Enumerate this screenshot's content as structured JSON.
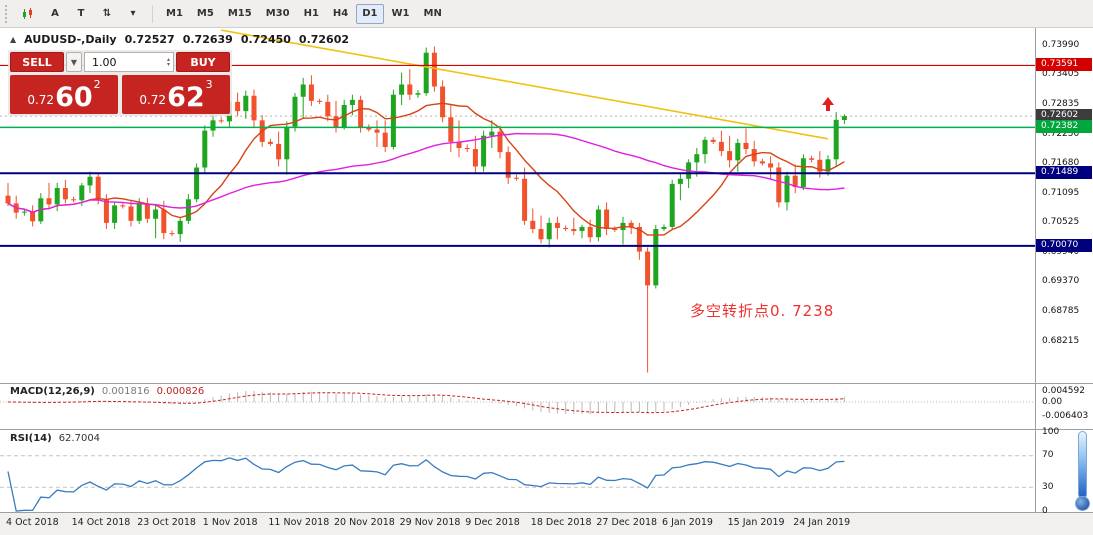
{
  "toolbar": {
    "tool_buttons": [
      {
        "label": "A"
      },
      {
        "label": "T"
      }
    ],
    "timeframes": [
      {
        "label": "M1"
      },
      {
        "label": "M5"
      },
      {
        "label": "M15"
      },
      {
        "label": "M30"
      },
      {
        "label": "H1"
      },
      {
        "label": "H4"
      },
      {
        "label": "D1",
        "active": true
      },
      {
        "label": "W1"
      },
      {
        "label": "MN"
      }
    ]
  },
  "chart_header": {
    "symbol": "AUDUSD-,Daily",
    "open": "0.72527",
    "high": "0.72639",
    "low": "0.72450",
    "close": "0.72602"
  },
  "trade_panel": {
    "sell_label": "SELL",
    "buy_label": "BUY",
    "volume": "1.00",
    "sell_price": {
      "small": "0.72",
      "big": "60",
      "sup": "2"
    },
    "buy_price": {
      "small": "0.72",
      "big": "62",
      "sup": "3"
    }
  },
  "annotation": {
    "text": "多空转折点0. 7238",
    "color": "#f03030"
  },
  "indicators": {
    "macd": {
      "label": "MACD(12,26,9)",
      "value": "0.001816",
      "signal": "0.000826",
      "axis": [
        {
          "text": "0.004592",
          "value": 0.004592
        },
        {
          "text": "0.00",
          "value": 0
        },
        {
          "text": "-0.006403",
          "value": -0.006403
        }
      ]
    },
    "rsi": {
      "label": "RSI(14)",
      "value": "62.7004",
      "axis": [
        {
          "text": "100",
          "value": 100
        },
        {
          "text": "70",
          "value": 70
        },
        {
          "text": "30",
          "value": 30
        },
        {
          "text": "0",
          "value": 0
        }
      ],
      "levels": [
        70,
        30
      ]
    }
  },
  "chart_data": {
    "type": "candlestick",
    "symbol": "AUDUSD",
    "timeframe": "Daily",
    "ylim": [
      0.68215,
      0.7399
    ],
    "current_price": 0.72602,
    "bull_color": "#1fa51f",
    "bear_color": "#f1512b",
    "price_axis_ticks": [
      {
        "text": "0.73990",
        "value": 0.7399
      },
      {
        "text": "0.73405",
        "value": 0.73405
      },
      {
        "text": "0.72835",
        "value": 0.72835
      },
      {
        "text": "0.72250",
        "value": 0.7225
      },
      {
        "text": "0.71680",
        "value": 0.7168
      },
      {
        "text": "0.71095",
        "value": 0.71095
      },
      {
        "text": "0.70525",
        "value": 0.70525
      },
      {
        "text": "0.69940",
        "value": 0.6994
      },
      {
        "text": "0.69370",
        "value": 0.6937
      },
      {
        "text": "0.68785",
        "value": 0.68785
      },
      {
        "text": "0.68215",
        "value": 0.68215
      }
    ],
    "price_badges": [
      {
        "text": "0.73591",
        "value": 0.73591,
        "color": "#d40000"
      },
      {
        "text": "0.72602",
        "value": 0.72602,
        "color": "#3c3c3c"
      },
      {
        "text": "0.72382",
        "value": 0.72382,
        "color": "#00a73c"
      },
      {
        "text": "0.71489",
        "value": 0.71489,
        "color": "#00007f"
      },
      {
        "text": "0.70070",
        "value": 0.7007,
        "color": "#00007f"
      }
    ],
    "hlines": [
      {
        "price": 0.73591,
        "color": "#d40000",
        "width": 1.2
      },
      {
        "price": 0.72382,
        "color": "#00b050",
        "width": 1.5
      },
      {
        "price": 0.71489,
        "color": "#000080",
        "width": 2
      },
      {
        "price": 0.7007,
        "color": "#000080",
        "width": 2
      }
    ],
    "trendline": {
      "from_index": 26,
      "from_price": 0.7428,
      "to_index": 100,
      "to_price": 0.7216,
      "color": "#efc20f"
    },
    "moving_averages": [
      {
        "name": "fast-ma",
        "period": 10,
        "color": "#d84315"
      },
      {
        "name": "slow-ma",
        "period": 45,
        "color": "#e020e0"
      }
    ],
    "arrow_marker": {
      "index": 100,
      "price": 0.7278,
      "color": "#e02020"
    },
    "x_labels": [
      {
        "label": "4 Oct 2018",
        "index": 0
      },
      {
        "label": "14 Oct 2018",
        "index": 8
      },
      {
        "label": "23 Oct 2018",
        "index": 16
      },
      {
        "label": "1 Nov 2018",
        "index": 24
      },
      {
        "label": "11 Nov 2018",
        "index": 32
      },
      {
        "label": "20 Nov 2018",
        "index": 40
      },
      {
        "label": "29 Nov 2018",
        "index": 48
      },
      {
        "label": "9 Dec 2018",
        "index": 56
      },
      {
        "label": "18 Dec 2018",
        "index": 64
      },
      {
        "label": "27 Dec 2018",
        "index": 72
      },
      {
        "label": "6 Jan 2019",
        "index": 80
      },
      {
        "label": "15 Jan 2019",
        "index": 88
      },
      {
        "label": "24 Jan 2019",
        "index": 96
      }
    ],
    "candles": [
      [
        0.7105,
        0.713,
        0.7085,
        0.709
      ],
      [
        0.709,
        0.7105,
        0.706,
        0.7072
      ],
      [
        0.7072,
        0.7078,
        0.7066,
        0.7074
      ],
      [
        0.7074,
        0.7086,
        0.7045,
        0.7055
      ],
      [
        0.7055,
        0.711,
        0.705,
        0.71
      ],
      [
        0.71,
        0.713,
        0.708,
        0.7088
      ],
      [
        0.7088,
        0.713,
        0.7075,
        0.712
      ],
      [
        0.712,
        0.7136,
        0.709,
        0.7098
      ],
      [
        0.7098,
        0.7103,
        0.7092,
        0.7096
      ],
      [
        0.7096,
        0.713,
        0.7085,
        0.7125
      ],
      [
        0.7125,
        0.7152,
        0.711,
        0.7142
      ],
      [
        0.7142,
        0.715,
        0.7088,
        0.7098
      ],
      [
        0.7098,
        0.7108,
        0.704,
        0.7052
      ],
      [
        0.7052,
        0.7092,
        0.704,
        0.7086
      ],
      [
        0.7086,
        0.7091,
        0.708,
        0.7084
      ],
      [
        0.7084,
        0.7096,
        0.7045,
        0.7056
      ],
      [
        0.7056,
        0.71,
        0.705,
        0.709
      ],
      [
        0.709,
        0.7101,
        0.7052,
        0.706
      ],
      [
        0.706,
        0.7088,
        0.7022,
        0.7078
      ],
      [
        0.7078,
        0.7095,
        0.702,
        0.7032
      ],
      [
        0.7032,
        0.7037,
        0.7026,
        0.703
      ],
      [
        0.703,
        0.7062,
        0.7015,
        0.7056
      ],
      [
        0.7056,
        0.7108,
        0.705,
        0.7098
      ],
      [
        0.7098,
        0.7168,
        0.7092,
        0.716
      ],
      [
        0.716,
        0.7242,
        0.715,
        0.7232
      ],
      [
        0.7232,
        0.73,
        0.722,
        0.7252
      ],
      [
        0.7252,
        0.7258,
        0.7246,
        0.725
      ],
      [
        0.725,
        0.7298,
        0.724,
        0.7288
      ],
      [
        0.7288,
        0.7306,
        0.726,
        0.727
      ],
      [
        0.727,
        0.731,
        0.7255,
        0.73
      ],
      [
        0.73,
        0.7312,
        0.724,
        0.7252
      ],
      [
        0.7252,
        0.7262,
        0.72,
        0.721
      ],
      [
        0.721,
        0.7216,
        0.7202,
        0.7206
      ],
      [
        0.7206,
        0.723,
        0.7162,
        0.7176
      ],
      [
        0.7176,
        0.725,
        0.7146,
        0.724
      ],
      [
        0.724,
        0.7305,
        0.723,
        0.7298
      ],
      [
        0.7298,
        0.7335,
        0.7255,
        0.7322
      ],
      [
        0.7322,
        0.734,
        0.728,
        0.729
      ],
      [
        0.729,
        0.7294,
        0.7284,
        0.7288
      ],
      [
        0.7288,
        0.7302,
        0.725,
        0.726
      ],
      [
        0.726,
        0.729,
        0.7228,
        0.7238
      ],
      [
        0.7238,
        0.7292,
        0.7234,
        0.7282
      ],
      [
        0.7282,
        0.7302,
        0.7262,
        0.7292
      ],
      [
        0.7292,
        0.73,
        0.7228,
        0.7238
      ],
      [
        0.7238,
        0.7244,
        0.723,
        0.7234
      ],
      [
        0.7234,
        0.7252,
        0.72,
        0.7228
      ],
      [
        0.7228,
        0.7252,
        0.719,
        0.72
      ],
      [
        0.72,
        0.7312,
        0.7195,
        0.7302
      ],
      [
        0.7302,
        0.7345,
        0.7282,
        0.7322
      ],
      [
        0.7322,
        0.7352,
        0.7292,
        0.7302
      ],
      [
        0.7302,
        0.7311,
        0.7296,
        0.7305
      ],
      [
        0.7305,
        0.7394,
        0.73,
        0.7384
      ],
      [
        0.7384,
        0.7396,
        0.7308,
        0.7318
      ],
      [
        0.7318,
        0.733,
        0.7248,
        0.7258
      ],
      [
        0.7258,
        0.7282,
        0.719,
        0.721
      ],
      [
        0.721,
        0.7252,
        0.718,
        0.7198
      ],
      [
        0.7198,
        0.7205,
        0.719,
        0.7196
      ],
      [
        0.7196,
        0.7222,
        0.715,
        0.7162
      ],
      [
        0.7162,
        0.7232,
        0.7152,
        0.7222
      ],
      [
        0.7222,
        0.7252,
        0.7198,
        0.723
      ],
      [
        0.723,
        0.7242,
        0.7178,
        0.719
      ],
      [
        0.719,
        0.7201,
        0.7128,
        0.714
      ],
      [
        0.714,
        0.7146,
        0.7134,
        0.7138
      ],
      [
        0.7138,
        0.716,
        0.7048,
        0.7056
      ],
      [
        0.7056,
        0.708,
        0.7032,
        0.704
      ],
      [
        0.704,
        0.7066,
        0.7012,
        0.702
      ],
      [
        0.702,
        0.7062,
        0.7004,
        0.7052
      ],
      [
        0.7052,
        0.7064,
        0.702,
        0.7042
      ],
      [
        0.7042,
        0.7047,
        0.7036,
        0.704
      ],
      [
        0.704,
        0.7062,
        0.7028,
        0.7036
      ],
      [
        0.7036,
        0.7048,
        0.7022,
        0.7044
      ],
      [
        0.7044,
        0.7058,
        0.7014,
        0.7024
      ],
      [
        0.7024,
        0.7086,
        0.7016,
        0.7078
      ],
      [
        0.7078,
        0.7092,
        0.7028,
        0.704
      ],
      [
        0.704,
        0.7045,
        0.7034,
        0.7038
      ],
      [
        0.7038,
        0.7064,
        0.701,
        0.7052
      ],
      [
        0.7052,
        0.7057,
        0.703,
        0.7044
      ],
      [
        0.7044,
        0.7052,
        0.698,
        0.6996
      ],
      [
        0.6996,
        0.7004,
        0.676,
        0.693
      ],
      [
        0.693,
        0.7048,
        0.6924,
        0.704
      ],
      [
        0.704,
        0.7049,
        0.7036,
        0.7044
      ],
      [
        0.7044,
        0.7136,
        0.704,
        0.7128
      ],
      [
        0.7128,
        0.7148,
        0.7096,
        0.7138
      ],
      [
        0.7138,
        0.7176,
        0.712,
        0.717
      ],
      [
        0.717,
        0.7198,
        0.7142,
        0.7186
      ],
      [
        0.7186,
        0.722,
        0.7168,
        0.7214
      ],
      [
        0.7214,
        0.7219,
        0.7206,
        0.721
      ],
      [
        0.721,
        0.7232,
        0.7182,
        0.7192
      ],
      [
        0.7192,
        0.7222,
        0.716,
        0.7174
      ],
      [
        0.7174,
        0.7216,
        0.7152,
        0.7208
      ],
      [
        0.7208,
        0.7236,
        0.7186,
        0.7196
      ],
      [
        0.7196,
        0.7212,
        0.7162,
        0.7172
      ],
      [
        0.7172,
        0.7177,
        0.7164,
        0.7168
      ],
      [
        0.7168,
        0.7182,
        0.7136,
        0.716
      ],
      [
        0.716,
        0.717,
        0.7082,
        0.7092
      ],
      [
        0.7092,
        0.7152,
        0.7076,
        0.7144
      ],
      [
        0.7144,
        0.7166,
        0.711,
        0.7122
      ],
      [
        0.7122,
        0.7186,
        0.7116,
        0.7178
      ],
      [
        0.7178,
        0.7183,
        0.717,
        0.7175
      ],
      [
        0.7175,
        0.7192,
        0.714,
        0.7152
      ],
      [
        0.7152,
        0.7184,
        0.7144,
        0.7176
      ],
      [
        0.7176,
        0.7268,
        0.7162,
        0.7253
      ],
      [
        0.72527,
        0.72639,
        0.7245,
        0.72602
      ]
    ]
  }
}
